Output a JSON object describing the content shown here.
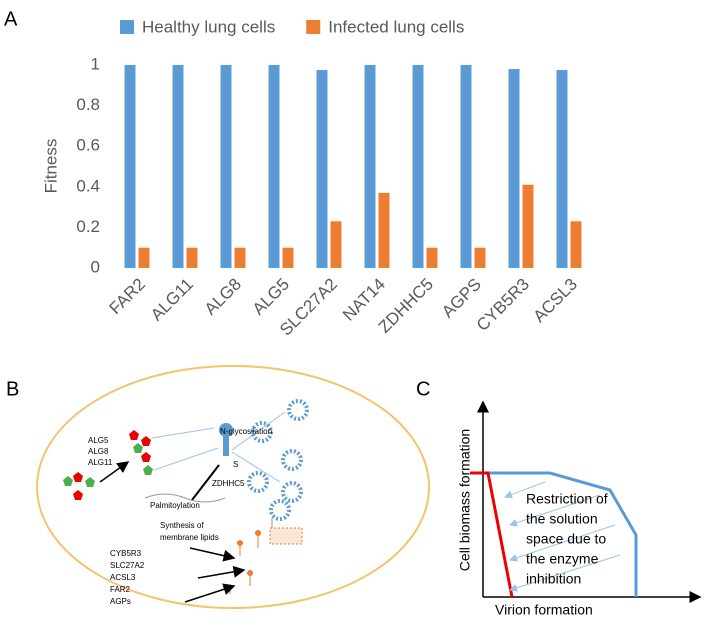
{
  "panel_labels": [
    "A",
    "B",
    "C"
  ],
  "chart_data": {
    "type": "bar",
    "y_label": "Fitness",
    "categories": [
      "FAR2",
      "ALG11",
      "ALG8",
      "ALG5",
      "SLC27A2",
      "NAT14",
      "ZDHHC5",
      "AGPS",
      "CYB5R3",
      "ACSL3"
    ],
    "series": [
      {
        "name": "Healthy lung cells",
        "color": "#5b9bd5",
        "values": [
          1,
          1,
          1,
          1,
          0.975,
          1,
          1,
          1,
          0.98,
          0.975
        ]
      },
      {
        "name": "Infected lung cells",
        "color": "#ed7d31",
        "values": [
          0.1,
          0.1,
          0.1,
          0.1,
          0.23,
          0.37,
          0.1,
          0.1,
          0.41,
          0.23
        ]
      }
    ],
    "ylim": [
      0,
      1
    ],
    "yticks": [
      0,
      0.2,
      0.4,
      0.6,
      0.8,
      1
    ],
    "grid": false,
    "legend": "top"
  },
  "diagram_b": {
    "glycosylation_enzymes": [
      "ALG5",
      "ALG8",
      "ALG11"
    ],
    "glycosylation_label": "N-glycosilation",
    "spike_label": "S",
    "palmitoylation_enzyme": "ZDHHC5",
    "palmitoylation_label": "Palmitoylation",
    "lipid_synthesis_label": [
      "Synthesis of",
      "membrane lipids"
    ],
    "lipid_enzymes": [
      "CYB5R3",
      "SLC27A2",
      "ACSL3",
      "FAR2",
      "AGPs"
    ]
  },
  "diagram_c": {
    "y_label": "Cell biomass formation",
    "x_label": "Virion formation",
    "annotation": [
      "Restriction of",
      "the solution",
      "space due to",
      "the enzyme",
      "inhibition"
    ]
  }
}
